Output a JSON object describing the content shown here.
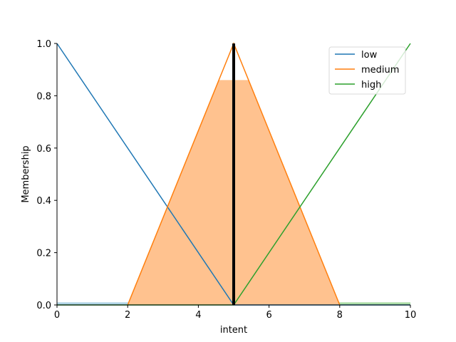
{
  "chart_data": {
    "type": "line",
    "xlabel": "intent",
    "ylabel": "Membership",
    "xlim": [
      0,
      10
    ],
    "ylim": [
      0,
      1
    ],
    "x_ticks": [
      0,
      2,
      4,
      6,
      8,
      10
    ],
    "y_ticks": [
      0.0,
      0.2,
      0.4,
      0.6,
      0.8,
      1.0
    ],
    "grid": false,
    "legend_position": "top-right",
    "series": [
      {
        "name": "low",
        "color": "#1f77b4",
        "x": [
          0,
          5,
          10
        ],
        "y": [
          1,
          0,
          0
        ]
      },
      {
        "name": "medium",
        "color": "#ff7f0e",
        "x": [
          2,
          5,
          8
        ],
        "y": [
          0,
          1,
          0
        ]
      },
      {
        "name": "high",
        "color": "#2ca02c",
        "x": [
          0,
          5,
          10
        ],
        "y": [
          0,
          0,
          1
        ]
      }
    ],
    "fill": {
      "series": "medium",
      "color": "#ffc28f",
      "clip_level": 0.86
    },
    "baseline_fills": [
      {
        "color": "#a6cee3",
        "x_range": [
          0,
          5
        ],
        "level": 0.01
      },
      {
        "color": "#a1d99b",
        "x_range": [
          5,
          10
        ],
        "level": 0.01
      }
    ],
    "output_line": {
      "x": 5,
      "y": 1.0,
      "color": "#000000"
    }
  }
}
